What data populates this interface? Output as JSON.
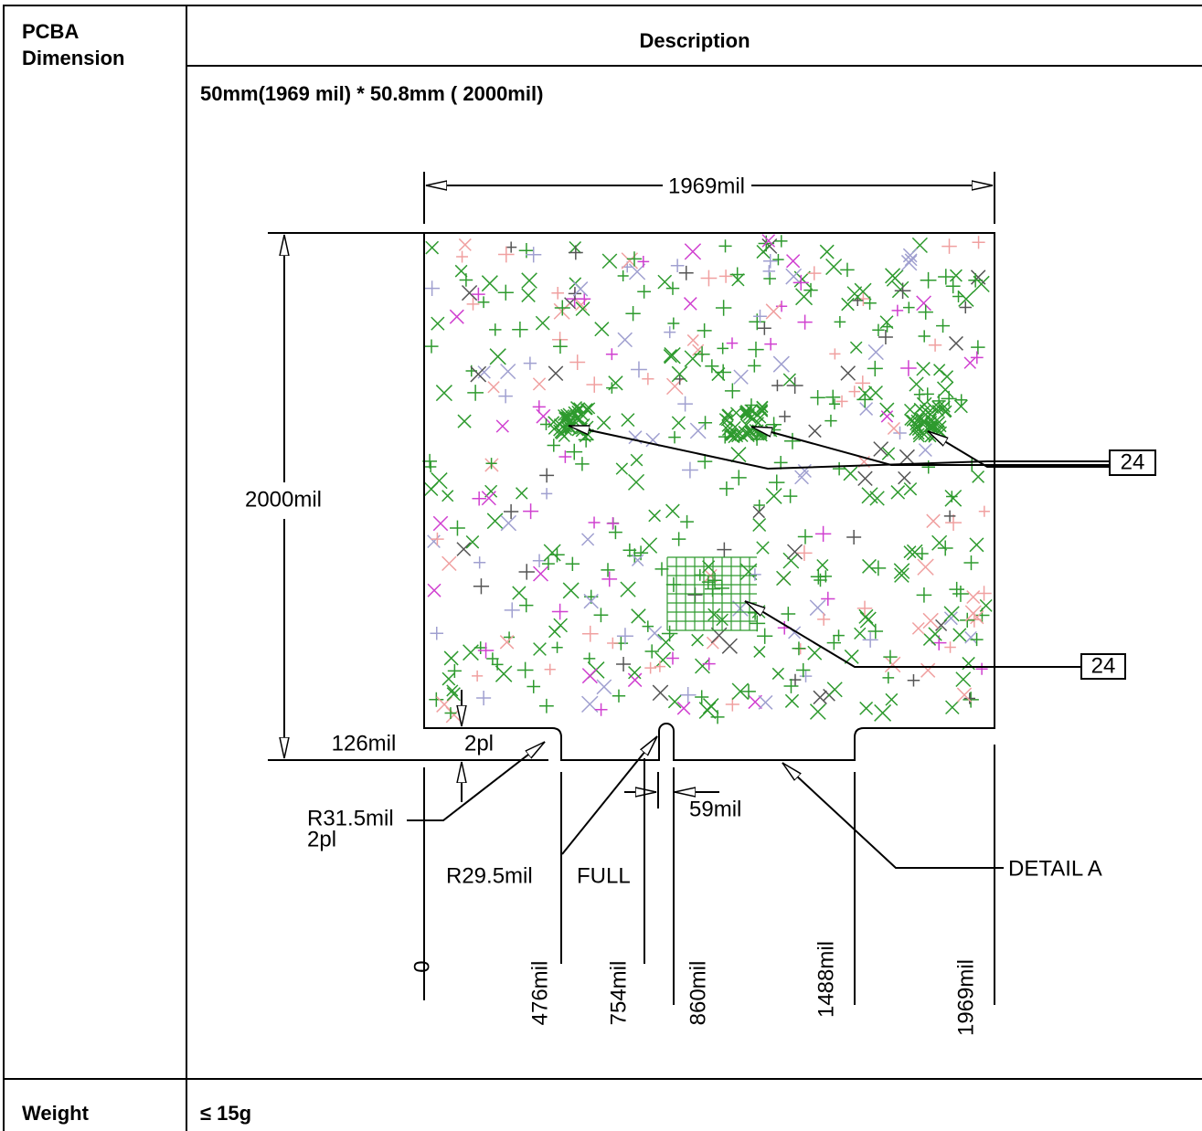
{
  "table": {
    "header": {
      "col1": "PCBA Dimension",
      "col2": "Description"
    },
    "dimension": {
      "text": "50mm(1969 mil) * 50.8mm ( 2000mil)",
      "drawing": {
        "width_label": "1969mil",
        "height_label": "2000mil",
        "notch_depth": "126mil",
        "notch_depth_count": "2pl",
        "corner_radius": "R31.5mil",
        "corner_radius_count": "2pl",
        "slot_radius": "R29.5mil",
        "slot_full": "FULL",
        "slot_width": "59mil",
        "detail": "DETAIL A",
        "callouts": [
          "24",
          "24"
        ],
        "x_positions": [
          "0",
          "476mil",
          "754mil",
          "860mil",
          "1488mil",
          "1969mil"
        ]
      }
    },
    "rows": [
      {
        "label": "Weight",
        "value": "≤ 15g"
      }
    ]
  }
}
